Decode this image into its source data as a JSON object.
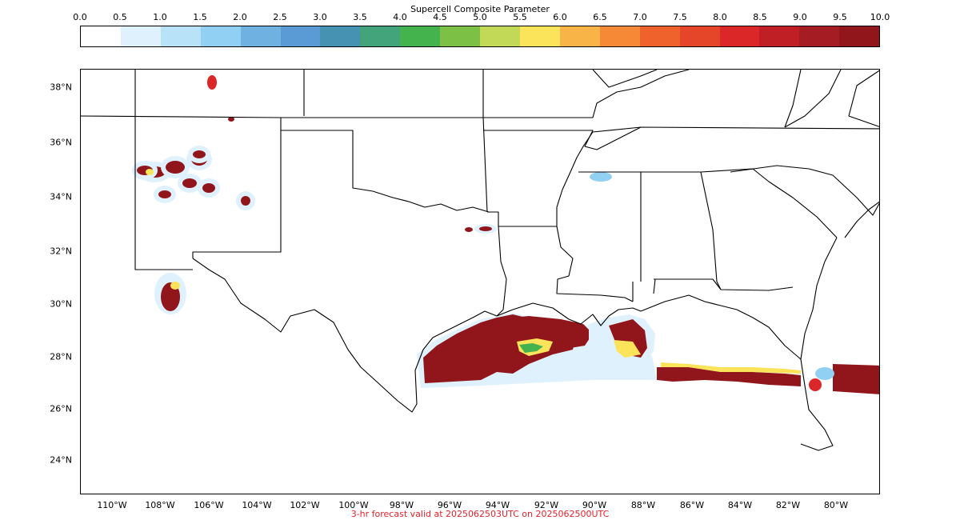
{
  "colorbar": {
    "title": "Supercell Composite Parameter",
    "ticks": [
      "0.0",
      "0.5",
      "1.0",
      "1.5",
      "2.0",
      "2.5",
      "3.0",
      "3.5",
      "4.0",
      "4.5",
      "5.0",
      "5.5",
      "6.0",
      "6.5",
      "7.0",
      "7.5",
      "8.0",
      "8.5",
      "9.0",
      "9.5",
      "10.0"
    ],
    "colors": [
      "#ffffff",
      "#dff1fc",
      "#b7e2f8",
      "#91d0f3",
      "#6fb2e2",
      "#5a9bd6",
      "#4592b3",
      "#43a47c",
      "#44b24d",
      "#7cc146",
      "#c1d956",
      "#fbe35a",
      "#f8b446",
      "#f68935",
      "#f0622c",
      "#e5462a",
      "#db2728",
      "#c01f26",
      "#a51c23",
      "#91161c"
    ]
  },
  "map": {
    "lat_labels": [
      "38°N",
      "36°N",
      "34°N",
      "32°N",
      "30°N",
      "28°N",
      "26°N",
      "24°N"
    ],
    "lon_labels": [
      "110°W",
      "108°W",
      "106°W",
      "104°W",
      "102°W",
      "100°W",
      "98°W",
      "96°W",
      "94°W",
      "92°W",
      "90°W",
      "88°W",
      "86°W",
      "84°W",
      "82°W",
      "80°W"
    ],
    "field_colors": {
      "extreme": "#91161c",
      "high": "#db2728",
      "mid": "#fbe35a",
      "low": "#44b24d",
      "light": "#91d0f3",
      "faint": "#dff1fc"
    }
  },
  "footer": {
    "text": "3-hr forecast valid at 2025062503UTC on 2025062500UTC"
  }
}
